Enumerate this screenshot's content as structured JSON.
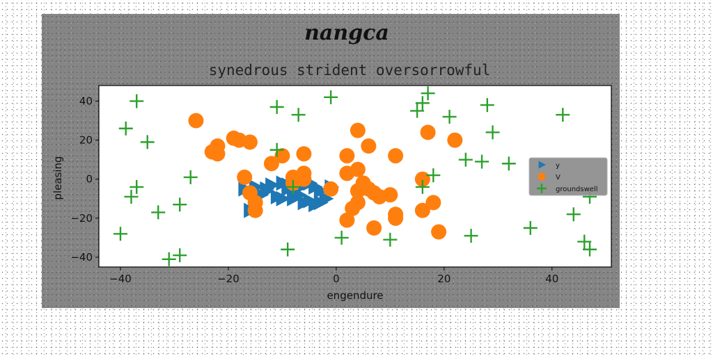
{
  "chart_data": {
    "type": "scatter",
    "suptitle": "nangca",
    "title": "synedrous strident oversorrowful",
    "xlabel": "engendure",
    "ylabel": "pleasing",
    "xlim": [
      -44,
      51
    ],
    "ylim": [
      -45,
      48
    ],
    "xticks": [
      -40,
      -20,
      0,
      20,
      40
    ],
    "yticks": [
      -40,
      -20,
      0,
      20,
      40
    ],
    "grid": false,
    "legend_position": "right",
    "series": [
      {
        "name": "y",
        "marker": "triangle-right",
        "color": "#1f77b4",
        "points": [
          [
            -17,
            -5
          ],
          [
            -15,
            -4
          ],
          [
            -13,
            -6
          ],
          [
            -12,
            -3
          ],
          [
            -10,
            -2
          ],
          [
            -9,
            -5
          ],
          [
            -8,
            -7
          ],
          [
            -6,
            -3
          ],
          [
            -4,
            -4
          ],
          [
            -3,
            -6
          ],
          [
            -14,
            -8
          ],
          [
            -11,
            -9
          ],
          [
            -10,
            -10
          ],
          [
            -8,
            -10
          ],
          [
            -6,
            -12
          ],
          [
            -5,
            -11
          ],
          [
            -3,
            -12
          ],
          [
            -2,
            -10
          ],
          [
            -4,
            -13
          ],
          [
            -16,
            -16
          ],
          [
            -7,
            -8
          ],
          [
            -13,
            -5
          ],
          [
            -5,
            -2
          ],
          [
            -1,
            -4
          ],
          [
            -9,
            -3
          ]
        ]
      },
      {
        "name": "V",
        "marker": "circle",
        "color": "#ff7f0e",
        "points": [
          [
            -26,
            30
          ],
          [
            -22,
            17
          ],
          [
            -22,
            13
          ],
          [
            -23,
            14
          ],
          [
            -18,
            20
          ],
          [
            -19,
            21
          ],
          [
            -16,
            19
          ],
          [
            -12,
            8
          ],
          [
            -10,
            12
          ],
          [
            -6,
            13
          ],
          [
            -17,
            1
          ],
          [
            -16,
            -7
          ],
          [
            -15,
            -12
          ],
          [
            -15,
            -16
          ],
          [
            -8,
            1
          ],
          [
            -6,
            3
          ],
          [
            -8,
            -2
          ],
          [
            -6,
            0
          ],
          [
            -1,
            -5
          ],
          [
            2,
            12
          ],
          [
            2,
            3
          ],
          [
            4,
            5
          ],
          [
            5,
            -2
          ],
          [
            4,
            -6
          ],
          [
            6,
            -5
          ],
          [
            7,
            -7
          ],
          [
            8,
            -9
          ],
          [
            10,
            -8
          ],
          [
            11,
            12
          ],
          [
            6,
            17
          ],
          [
            4,
            25
          ],
          [
            17,
            24
          ],
          [
            22,
            20
          ],
          [
            16,
            0
          ],
          [
            18,
            -12
          ],
          [
            16,
            -16
          ],
          [
            11,
            -18
          ],
          [
            11,
            -20
          ],
          [
            3,
            -15
          ],
          [
            2,
            -21
          ],
          [
            4,
            -12
          ],
          [
            7,
            -25
          ],
          [
            19,
            -27
          ]
        ]
      },
      {
        "name": "groundswell",
        "marker": "plus",
        "color": "#2ca02c",
        "points": [
          [
            -37,
            40
          ],
          [
            -39,
            26
          ],
          [
            -35,
            19
          ],
          [
            -37,
            -4
          ],
          [
            -38,
            -9
          ],
          [
            -33,
            -17
          ],
          [
            -29,
            -13
          ],
          [
            -27,
            1
          ],
          [
            -40,
            -28
          ],
          [
            -31,
            -41
          ],
          [
            -29,
            -39
          ],
          [
            -11,
            37
          ],
          [
            -7,
            33
          ],
          [
            -1,
            42
          ],
          [
            -11,
            15
          ],
          [
            -8,
            -4
          ],
          [
            -9,
            -36
          ],
          [
            1,
            -30
          ],
          [
            10,
            -31
          ],
          [
            15,
            35
          ],
          [
            16,
            39
          ],
          [
            17,
            44
          ],
          [
            21,
            32
          ],
          [
            28,
            38
          ],
          [
            29,
            24
          ],
          [
            24,
            10
          ],
          [
            27,
            9
          ],
          [
            32,
            8
          ],
          [
            18,
            2
          ],
          [
            16,
            -4
          ],
          [
            25,
            -29
          ],
          [
            36,
            -25
          ],
          [
            42,
            33
          ],
          [
            44,
            -18
          ],
          [
            46,
            -32
          ],
          [
            47,
            -36
          ],
          [
            47,
            -9
          ]
        ]
      }
    ]
  }
}
